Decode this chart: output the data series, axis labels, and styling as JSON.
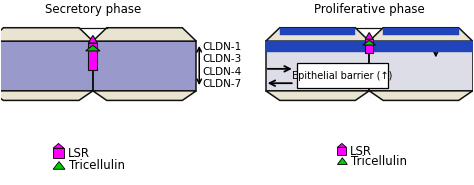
{
  "title_left": "Secretory phase",
  "title_right": "Proliferative phase",
  "cldn_labels": [
    "CLDN-1",
    "CLDN-3",
    "CLDN-4",
    "CLDN-7"
  ],
  "barrier_label": "Epithelial barrier (↑)",
  "cell_fill_left": "#9999CC",
  "cell_fill_right": "#DDDDE8",
  "cell_top_fill": "#E8E4D0",
  "cell_outline": "#111111",
  "lsr_color": "#FF00FF",
  "tricellulin_color": "#00CC00",
  "blue_band_color": "#2244BB",
  "bg_color": "#FFFFFF",
  "figsize": [
    4.74,
    1.85
  ],
  "dpi": 100
}
